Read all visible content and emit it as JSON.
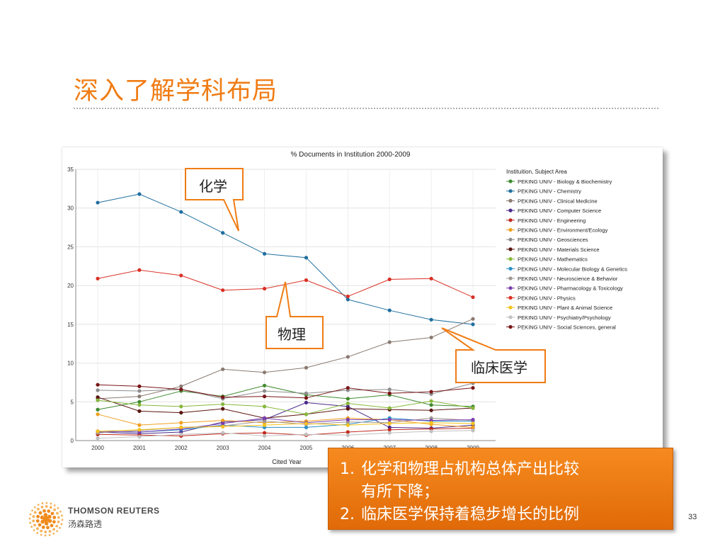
{
  "slide": {
    "title": "深入了解学科布局",
    "page_number": "33",
    "brand": {
      "name": "THOMSON REUTERS",
      "name_cn": "汤森路透"
    },
    "callouts": {
      "chemistry": "化学",
      "physics": "物理",
      "clinical": "临床医学"
    },
    "summary": [
      {
        "num": "1.",
        "lines": [
          "化学和物理占机构总体产出比较",
          "有所下降；"
        ]
      },
      {
        "num": "2.",
        "lines": [
          "临床医学保持着稳步增长的比例"
        ]
      }
    ],
    "colors": {
      "accent": "#f07c14",
      "summary_bg": "#f57f17"
    }
  },
  "chart_data": {
    "type": "line",
    "title": "% Documents in Institution 2000-2009",
    "xlabel": "Cited Year",
    "ylabel": "",
    "ylim": [
      0,
      35
    ],
    "yticks": [
      0,
      5,
      10,
      15,
      20,
      25,
      30,
      35
    ],
    "x": [
      2000,
      2001,
      2002,
      2003,
      2004,
      2005,
      2006,
      2007,
      2008,
      2009
    ],
    "grid": true,
    "legend_position": "right",
    "legend_title": "Instituition, Subject Area",
    "series": [
      {
        "name": "PEKING UNIV - Biology & Biochemistry",
        "color": "#3f8a2f",
        "values": [
          4.0,
          5.0,
          6.4,
          5.7,
          7.1,
          5.9,
          5.4,
          5.9,
          4.6,
          4.4
        ]
      },
      {
        "name": "PEKING UNIV - Chemistry",
        "color": "#1f6f9f",
        "values": [
          30.7,
          31.8,
          29.5,
          26.8,
          24.1,
          23.6,
          18.2,
          16.8,
          15.6,
          15.0
        ]
      },
      {
        "name": "PEKING UNIV - Clinical Medicine",
        "color": "#8a7a70",
        "values": [
          5.4,
          5.7,
          7.0,
          9.2,
          8.8,
          9.4,
          10.8,
          12.7,
          13.3,
          15.7
        ]
      },
      {
        "name": "PEKING UNIV - Computer Science",
        "color": "#4b2a8a",
        "values": [
          1.1,
          0.9,
          1.1,
          2.4,
          2.7,
          4.9,
          4.4,
          1.7,
          1.6,
          2.0
        ]
      },
      {
        "name": "PEKING UNIV - Engineering",
        "color": "#c0281e",
        "values": [
          0.8,
          0.7,
          0.6,
          0.9,
          1.0,
          0.7,
          1.1,
          1.4,
          1.5,
          1.6
        ]
      },
      {
        "name": "PEKING UNIV - Environment/Ecology",
        "color": "#f0a020",
        "values": [
          3.4,
          2.0,
          2.3,
          2.6,
          2.3,
          2.5,
          2.9,
          2.7,
          2.1,
          1.7
        ]
      },
      {
        "name": "PEKING UNIV - Geosciences",
        "color": "#8c8c8c",
        "values": [
          6.5,
          6.4,
          6.6,
          5.4,
          6.4,
          6.1,
          6.5,
          6.6,
          6.0,
          7.4
        ]
      },
      {
        "name": "PEKING UNIV - Materials Science",
        "color": "#5a1510",
        "values": [
          5.6,
          3.8,
          3.6,
          4.1,
          2.9,
          3.4,
          4.1,
          4.0,
          3.9,
          4.2
        ]
      },
      {
        "name": "PEKING UNIV - Mathematics",
        "color": "#86b83a",
        "values": [
          5.2,
          4.6,
          4.4,
          4.7,
          4.4,
          3.4,
          4.8,
          4.2,
          5.1,
          4.2
        ]
      },
      {
        "name": "PEKING UNIV - Molecular Biology & Genetics",
        "color": "#2a8fc8",
        "values": [
          1.2,
          1.1,
          1.4,
          2.0,
          1.7,
          1.7,
          2.1,
          2.9,
          2.5,
          2.5
        ]
      },
      {
        "name": "PEKING UNIV - Neuroscience & Behavior",
        "color": "#a09890",
        "values": [
          1.0,
          1.3,
          1.7,
          1.9,
          2.5,
          2.1,
          2.4,
          2.3,
          2.9,
          2.6
        ]
      },
      {
        "name": "PEKING UNIV - Pharmacology & Toxicology",
        "color": "#7a3fb0",
        "values": [
          1.2,
          1.1,
          1.5,
          2.2,
          2.9,
          2.3,
          2.7,
          2.7,
          2.6,
          2.7
        ]
      },
      {
        "name": "PEKING UNIV - Physics",
        "color": "#d93025",
        "values": [
          20.9,
          22.0,
          21.3,
          19.4,
          19.6,
          20.7,
          18.6,
          20.8,
          20.9,
          18.5
        ]
      },
      {
        "name": "PEKING UNIV - Plant & Animal Science",
        "color": "#f5c21a",
        "values": [
          1.2,
          1.4,
          1.7,
          1.8,
          2.0,
          2.2,
          2.0,
          2.2,
          2.3,
          2.2
        ]
      },
      {
        "name": "PEKING UNIV - Psychiatry/Psychology",
        "color": "#c0c0c0",
        "values": [
          0.3,
          0.5,
          0.8,
          1.0,
          0.6,
          0.8,
          0.7,
          1.0,
          1.2,
          1.3
        ]
      },
      {
        "name": "PEKING UNIV - Social Sciences, general",
        "color": "#7a1518",
        "values": [
          7.2,
          7.0,
          6.6,
          5.6,
          5.7,
          5.5,
          6.8,
          6.1,
          6.3,
          6.8
        ]
      }
    ]
  }
}
